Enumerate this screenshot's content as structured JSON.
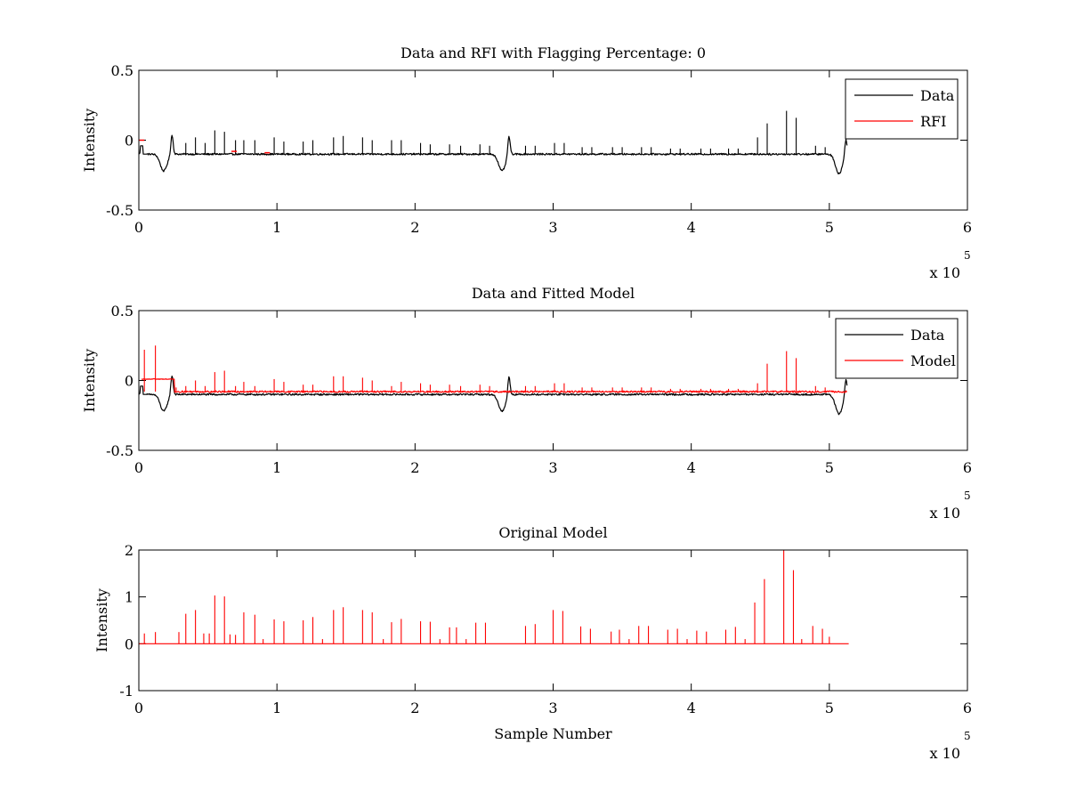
{
  "chart_data": [
    {
      "type": "line",
      "title": "Data and RFI with Flagging Percentage: 0",
      "xlabel": "",
      "ylabel": "Intensity",
      "xlim": [
        0,
        6
      ],
      "ylim": [
        -0.5,
        0.5
      ],
      "x_ticks": [
        "0",
        "1",
        "2",
        "3",
        "4",
        "5",
        "6"
      ],
      "y_ticks": [
        "0.5",
        "0",
        "-0.5"
      ],
      "x_multiplier": {
        "base": "x 10",
        "exponent": "5"
      },
      "legend": {
        "position": "top-right",
        "entries": [
          {
            "label": "Data",
            "color": "#000000"
          },
          {
            "label": "RFI",
            "color": "#ff0000"
          }
        ]
      },
      "series": [
        {
          "name": "Data",
          "color": "#000000",
          "baseline": -0.1,
          "dips": [
            {
              "center": 0.18,
              "depth": -0.22
            },
            {
              "center": 2.63,
              "depth": -0.22
            },
            {
              "center": 5.07,
              "depth": -0.24
            }
          ],
          "bumps": [
            {
              "x": 0.24,
              "y": 0.04
            },
            {
              "x": 2.68,
              "y": 0.04
            },
            {
              "x": 5.12,
              "y": 0.02
            }
          ],
          "spikes": [
            {
              "x": 0.34,
              "y": -0.02
            },
            {
              "x": 0.41,
              "y": 0.02
            },
            {
              "x": 0.48,
              "y": -0.02
            },
            {
              "x": 0.55,
              "y": 0.07
            },
            {
              "x": 0.62,
              "y": 0.06
            },
            {
              "x": 0.7,
              "y": 0.0
            },
            {
              "x": 0.76,
              "y": 0.0
            },
            {
              "x": 0.84,
              "y": 0.0
            },
            {
              "x": 0.98,
              "y": 0.02
            },
            {
              "x": 1.05,
              "y": -0.01
            },
            {
              "x": 1.19,
              "y": -0.01
            },
            {
              "x": 1.26,
              "y": 0.0
            },
            {
              "x": 1.41,
              "y": 0.02
            },
            {
              "x": 1.48,
              "y": 0.03
            },
            {
              "x": 1.62,
              "y": 0.02
            },
            {
              "x": 1.69,
              "y": 0.0
            },
            {
              "x": 1.83,
              "y": 0.0
            },
            {
              "x": 1.9,
              "y": 0.0
            },
            {
              "x": 2.04,
              "y": -0.02
            },
            {
              "x": 2.11,
              "y": -0.03
            },
            {
              "x": 2.25,
              "y": -0.03
            },
            {
              "x": 2.33,
              "y": -0.04
            },
            {
              "x": 2.47,
              "y": -0.03
            },
            {
              "x": 2.54,
              "y": -0.04
            },
            {
              "x": 2.8,
              "y": -0.04
            },
            {
              "x": 2.87,
              "y": -0.04
            },
            {
              "x": 3.01,
              "y": -0.02
            },
            {
              "x": 3.08,
              "y": -0.02
            },
            {
              "x": 3.21,
              "y": -0.05
            },
            {
              "x": 3.28,
              "y": -0.05
            },
            {
              "x": 3.43,
              "y": -0.05
            },
            {
              "x": 3.5,
              "y": -0.05
            },
            {
              "x": 3.64,
              "y": -0.05
            },
            {
              "x": 3.71,
              "y": -0.05
            },
            {
              "x": 3.85,
              "y": -0.06
            },
            {
              "x": 3.92,
              "y": -0.06
            },
            {
              "x": 4.07,
              "y": -0.06
            },
            {
              "x": 4.14,
              "y": -0.06
            },
            {
              "x": 4.27,
              "y": -0.06
            },
            {
              "x": 4.34,
              "y": -0.06
            },
            {
              "x": 4.48,
              "y": 0.02
            },
            {
              "x": 4.55,
              "y": 0.12
            },
            {
              "x": 4.69,
              "y": 0.21
            },
            {
              "x": 4.76,
              "y": 0.16
            },
            {
              "x": 4.9,
              "y": -0.04
            },
            {
              "x": 4.97,
              "y": -0.05
            }
          ],
          "x_end": 5.13
        },
        {
          "name": "RFI",
          "color": "#ff0000",
          "marks": [
            {
              "x": 0.02,
              "y": 0.0
            },
            {
              "x": 0.69,
              "y": -0.08
            },
            {
              "x": 0.93,
              "y": -0.09
            }
          ]
        }
      ]
    },
    {
      "type": "line",
      "title": "Data and Fitted Model",
      "xlabel": "",
      "ylabel": "Intensity",
      "xlim": [
        0,
        6
      ],
      "ylim": [
        -0.5,
        0.5
      ],
      "x_ticks": [
        "0",
        "1",
        "2",
        "3",
        "4",
        "5",
        "6"
      ],
      "y_ticks": [
        "0.5",
        "0",
        "-0.5"
      ],
      "x_multiplier": {
        "base": "x 10",
        "exponent": "5"
      },
      "legend": {
        "position": "top-right",
        "entries": [
          {
            "label": "Data",
            "color": "#000000"
          },
          {
            "label": "Model",
            "color": "#ff0000"
          }
        ]
      },
      "series": [
        {
          "name": "Data",
          "color": "#000000",
          "baseline": -0.1,
          "dips": [
            {
              "center": 0.18,
              "depth": -0.22
            },
            {
              "center": 2.63,
              "depth": -0.22
            },
            {
              "center": 5.07,
              "depth": -0.24
            }
          ],
          "bumps": [
            {
              "x": 0.24,
              "y": 0.04
            },
            {
              "x": 2.68,
              "y": 0.04
            },
            {
              "x": 5.12,
              "y": 0.02
            }
          ],
          "x_end": 5.13
        },
        {
          "name": "Model",
          "color": "#ff0000",
          "baseline": -0.08,
          "early_level": {
            "x_start": 0.02,
            "x_end": 0.26,
            "y": 0.01
          },
          "spikes": [
            {
              "x": 0.04,
              "y": 0.22
            },
            {
              "x": 0.12,
              "y": 0.25
            },
            {
              "x": 0.27,
              "y": -0.05
            },
            {
              "x": 0.34,
              "y": -0.04
            },
            {
              "x": 0.41,
              "y": 0.0
            },
            {
              "x": 0.48,
              "y": -0.04
            },
            {
              "x": 0.55,
              "y": 0.06
            },
            {
              "x": 0.62,
              "y": 0.07
            },
            {
              "x": 0.7,
              "y": -0.04
            },
            {
              "x": 0.76,
              "y": -0.01
            },
            {
              "x": 0.84,
              "y": -0.04
            },
            {
              "x": 0.98,
              "y": 0.01
            },
            {
              "x": 1.05,
              "y": -0.01
            },
            {
              "x": 1.19,
              "y": -0.03
            },
            {
              "x": 1.26,
              "y": -0.03
            },
            {
              "x": 1.41,
              "y": 0.03
            },
            {
              "x": 1.48,
              "y": 0.03
            },
            {
              "x": 1.62,
              "y": 0.02
            },
            {
              "x": 1.69,
              "y": 0.0
            },
            {
              "x": 1.83,
              "y": -0.04
            },
            {
              "x": 1.9,
              "y": -0.01
            },
            {
              "x": 2.04,
              "y": -0.02
            },
            {
              "x": 2.11,
              "y": -0.03
            },
            {
              "x": 2.25,
              "y": -0.03
            },
            {
              "x": 2.33,
              "y": -0.04
            },
            {
              "x": 2.47,
              "y": -0.03
            },
            {
              "x": 2.54,
              "y": -0.04
            },
            {
              "x": 2.8,
              "y": -0.04
            },
            {
              "x": 2.87,
              "y": -0.04
            },
            {
              "x": 3.01,
              "y": -0.02
            },
            {
              "x": 3.08,
              "y": -0.02
            },
            {
              "x": 3.21,
              "y": -0.05
            },
            {
              "x": 3.28,
              "y": -0.05
            },
            {
              "x": 3.43,
              "y": -0.05
            },
            {
              "x": 3.5,
              "y": -0.05
            },
            {
              "x": 3.64,
              "y": -0.05
            },
            {
              "x": 3.71,
              "y": -0.05
            },
            {
              "x": 3.85,
              "y": -0.06
            },
            {
              "x": 3.92,
              "y": -0.06
            },
            {
              "x": 4.07,
              "y": -0.06
            },
            {
              "x": 4.14,
              "y": -0.06
            },
            {
              "x": 4.27,
              "y": -0.06
            },
            {
              "x": 4.34,
              "y": -0.06
            },
            {
              "x": 4.48,
              "y": -0.02
            },
            {
              "x": 4.55,
              "y": 0.12
            },
            {
              "x": 4.69,
              "y": 0.21
            },
            {
              "x": 4.76,
              "y": 0.16
            },
            {
              "x": 4.9,
              "y": -0.04
            },
            {
              "x": 4.97,
              "y": -0.05
            }
          ],
          "x_end": 5.13
        }
      ]
    },
    {
      "type": "line",
      "title": "Original Model",
      "xlabel": "Sample Number",
      "ylabel": "Intensity",
      "xlim": [
        0,
        6
      ],
      "ylim": [
        -1,
        2
      ],
      "x_ticks": [
        "0",
        "1",
        "2",
        "3",
        "4",
        "5",
        "6"
      ],
      "y_ticks": [
        "2",
        "1",
        "0",
        "-1"
      ],
      "x_multiplier": {
        "base": "x 10",
        "exponent": "5"
      },
      "series": [
        {
          "name": "Original Model",
          "color": "#ff0000",
          "baseline": 0,
          "spikes": [
            {
              "x": 0.04,
              "y": 0.22
            },
            {
              "x": 0.12,
              "y": 0.25
            },
            {
              "x": 0.29,
              "y": 0.25
            },
            {
              "x": 0.34,
              "y": 0.64
            },
            {
              "x": 0.41,
              "y": 0.72
            },
            {
              "x": 0.47,
              "y": 0.22
            },
            {
              "x": 0.51,
              "y": 0.22
            },
            {
              "x": 0.55,
              "y": 1.03
            },
            {
              "x": 0.62,
              "y": 1.01
            },
            {
              "x": 0.66,
              "y": 0.2
            },
            {
              "x": 0.7,
              "y": 0.19
            },
            {
              "x": 0.76,
              "y": 0.67
            },
            {
              "x": 0.84,
              "y": 0.62
            },
            {
              "x": 0.9,
              "y": 0.1
            },
            {
              "x": 0.98,
              "y": 0.52
            },
            {
              "x": 1.05,
              "y": 0.48
            },
            {
              "x": 1.19,
              "y": 0.5
            },
            {
              "x": 1.26,
              "y": 0.57
            },
            {
              "x": 1.33,
              "y": 0.1
            },
            {
              "x": 1.41,
              "y": 0.72
            },
            {
              "x": 1.48,
              "y": 0.78
            },
            {
              "x": 1.62,
              "y": 0.72
            },
            {
              "x": 1.69,
              "y": 0.67
            },
            {
              "x": 1.77,
              "y": 0.1
            },
            {
              "x": 1.83,
              "y": 0.46
            },
            {
              "x": 1.9,
              "y": 0.53
            },
            {
              "x": 2.04,
              "y": 0.48
            },
            {
              "x": 2.11,
              "y": 0.47
            },
            {
              "x": 2.18,
              "y": 0.1
            },
            {
              "x": 2.25,
              "y": 0.35
            },
            {
              "x": 2.3,
              "y": 0.35
            },
            {
              "x": 2.37,
              "y": 0.1
            },
            {
              "x": 2.44,
              "y": 0.45
            },
            {
              "x": 2.51,
              "y": 0.45
            },
            {
              "x": 2.8,
              "y": 0.38
            },
            {
              "x": 2.87,
              "y": 0.42
            },
            {
              "x": 3.0,
              "y": 0.72
            },
            {
              "x": 3.07,
              "y": 0.7
            },
            {
              "x": 3.2,
              "y": 0.37
            },
            {
              "x": 3.27,
              "y": 0.32
            },
            {
              "x": 3.42,
              "y": 0.26
            },
            {
              "x": 3.48,
              "y": 0.3
            },
            {
              "x": 3.55,
              "y": 0.1
            },
            {
              "x": 3.62,
              "y": 0.38
            },
            {
              "x": 3.69,
              "y": 0.38
            },
            {
              "x": 3.83,
              "y": 0.3
            },
            {
              "x": 3.9,
              "y": 0.32
            },
            {
              "x": 3.97,
              "y": 0.1
            },
            {
              "x": 4.04,
              "y": 0.28
            },
            {
              "x": 4.11,
              "y": 0.26
            },
            {
              "x": 4.25,
              "y": 0.3
            },
            {
              "x": 4.32,
              "y": 0.36
            },
            {
              "x": 4.39,
              "y": 0.1
            },
            {
              "x": 4.46,
              "y": 0.88
            },
            {
              "x": 4.53,
              "y": 1.38
            },
            {
              "x": 4.67,
              "y": 2.0
            },
            {
              "x": 4.74,
              "y": 1.57
            },
            {
              "x": 4.8,
              "y": 0.1
            },
            {
              "x": 4.88,
              "y": 0.38
            },
            {
              "x": 4.95,
              "y": 0.32
            },
            {
              "x": 5.0,
              "y": 0.15
            }
          ],
          "x_end": 5.14
        }
      ]
    }
  ]
}
